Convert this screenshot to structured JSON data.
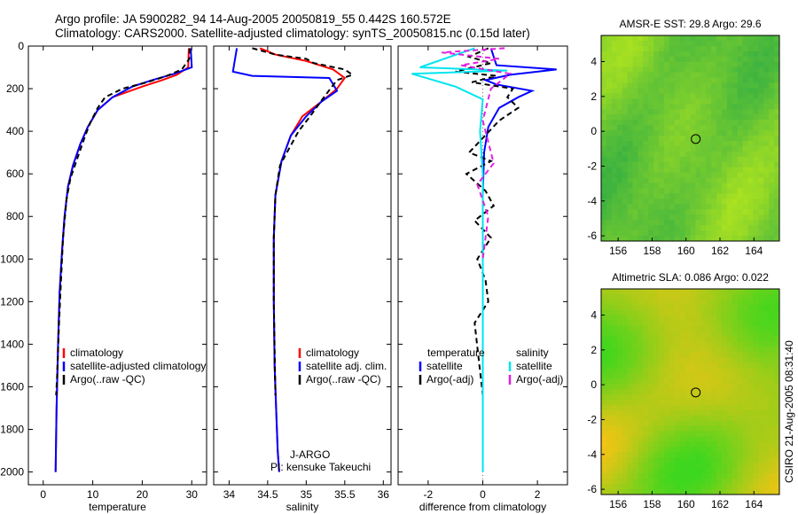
{
  "figure": {
    "title_line1": "Argo profile: JA 5900282_94 14-Aug-2005 20050819_55 0.442S 160.572E",
    "title_line2": "Climatology: CARS2000. Satellite-adjusted climatology: synTS_20050815.nc (0.15d later)",
    "credit": "CSIRO 21-Aug-2005 08:31:40",
    "program": "J-ARGO",
    "pi": "PI: kensuke Takeuchi",
    "colors": {
      "red": "#ff0000",
      "blue": "#0000ff",
      "black": "#000000",
      "cyan": "#00e5ee",
      "magenta": "#e020e0"
    }
  },
  "chart_data": [
    {
      "type": "line",
      "id": "temperature",
      "xlabel": "temperature",
      "xlim": [
        -3,
        33
      ],
      "ylim": [
        2060,
        0
      ],
      "xticks": [
        0,
        10,
        20,
        30
      ],
      "yticks": [
        0,
        200,
        400,
        600,
        800,
        1000,
        1200,
        1400,
        1600,
        1800,
        2000
      ],
      "legend": [
        "climatology",
        "satellite-adjusted climatology",
        "Argo(..raw -QC)"
      ],
      "series": [
        {
          "name": "climatology",
          "color": "red",
          "x": [
            29.4,
            29.3,
            27.0,
            24.0,
            20.0,
            14.0,
            11.0,
            9.0,
            7.5,
            6.0,
            5.0,
            4.3,
            3.8,
            3.3,
            3.0,
            2.7,
            2.5
          ],
          "y": [
            10,
            100,
            135,
            160,
            190,
            240,
            300,
            380,
            460,
            560,
            660,
            800,
            960,
            1160,
            1400,
            1700,
            2000
          ]
        },
        {
          "name": "satellite-adjusted climatology",
          "color": "blue",
          "x": [
            29.8,
            30.0,
            26.5,
            22.0,
            18.0,
            14.0,
            11.0,
            9.0,
            7.5,
            6.0,
            5.0,
            4.3,
            3.8,
            3.3,
            3.0,
            2.7,
            2.5
          ],
          "y": [
            10,
            100,
            130,
            160,
            190,
            240,
            300,
            380,
            460,
            560,
            660,
            800,
            960,
            1160,
            1400,
            1700,
            2000
          ]
        },
        {
          "name": "Argo(..raw -QC)",
          "color": "black",
          "dashed": true,
          "x": [
            29.6,
            29.5,
            28.0,
            25.0,
            21.0,
            16.0,
            12.5,
            11.0,
            9.5,
            8.5,
            7.0,
            5.5,
            4.7,
            4.0,
            3.6,
            3.2,
            2.8,
            2.6
          ],
          "y": [
            10,
            60,
            110,
            140,
            170,
            200,
            240,
            290,
            360,
            420,
            520,
            620,
            720,
            900,
            1100,
            1300,
            1550,
            1640
          ]
        }
      ]
    },
    {
      "type": "line",
      "id": "salinity",
      "xlabel": "salinity",
      "xlim": [
        33.8,
        36.1
      ],
      "ylim": [
        2060,
        0
      ],
      "xticks": [
        34,
        34.5,
        35,
        35.5,
        36
      ],
      "legend": [
        "climatology",
        "satellite adj. clim.",
        "Argo(..raw -QC)"
      ],
      "series": [
        {
          "name": "climatology",
          "color": "red",
          "x": [
            34.4,
            34.6,
            35.0,
            35.35,
            35.5,
            35.4,
            35.2,
            34.95,
            34.8,
            34.68,
            34.6,
            34.58,
            34.58,
            34.59,
            34.61,
            34.63,
            34.65
          ],
          "y": [
            10,
            40,
            70,
            110,
            150,
            200,
            260,
            330,
            420,
            540,
            700,
            900,
            1200,
            1500,
            1700,
            1900,
            2000
          ]
        },
        {
          "name": "satellite adj. clim.",
          "color": "blue",
          "x": [
            34.1,
            34.05,
            34.3,
            35.3,
            35.4,
            35.2,
            35.0,
            34.8,
            34.68,
            34.6,
            34.58,
            34.58,
            34.59,
            34.61,
            34.63,
            34.65
          ],
          "y": [
            10,
            120,
            140,
            150,
            210,
            260,
            330,
            420,
            540,
            700,
            900,
            1200,
            1500,
            1700,
            1900,
            2000
          ]
        },
        {
          "name": "Argo(..raw -QC)",
          "color": "black",
          "dashed": true,
          "x": [
            34.3,
            34.6,
            35.0,
            35.1,
            35.5,
            35.6,
            35.4,
            35.25,
            35.05,
            34.9,
            34.78,
            34.66,
            34.6,
            34.58,
            34.58,
            34.6
          ],
          "y": [
            10,
            40,
            60,
            80,
            110,
            135,
            160,
            230,
            330,
            400,
            480,
            560,
            700,
            900,
            1200,
            1640
          ]
        }
      ]
    },
    {
      "type": "line",
      "id": "difference",
      "xlabel": "difference from climatology",
      "xlim": [
        -3.1,
        3.1
      ],
      "ylim": [
        2060,
        0
      ],
      "xticks": [
        -2,
        0,
        2
      ],
      "legend_temperature_header": "temperature",
      "legend_salinity_header": "salinity",
      "legend": [
        "satellite",
        "Argo(-adj)",
        "satellite",
        "Argo(-adj)"
      ],
      "series": [
        {
          "name": "satellite",
          "group": "temperature",
          "color": "blue",
          "x": [
            0.3,
            0.5,
            2.7,
            1.0,
            0.1,
            0.5,
            1.8,
            1.3,
            0.6,
            0.2,
            0.05,
            0.0,
            0.0,
            0.0
          ],
          "y": [
            10,
            90,
            110,
            135,
            160,
            180,
            210,
            240,
            290,
            380,
            500,
            700,
            1200,
            1700
          ]
        },
        {
          "name": "Argo(-adj)",
          "group": "temperature",
          "color": "black",
          "dashed": true,
          "x": [
            0.2,
            -0.5,
            0.3,
            -1.0,
            0.5,
            -0.4,
            1.1,
            0.9,
            1.3,
            0.6,
            -0.5,
            0.3,
            -0.6,
            0.1,
            0.4,
            -0.3,
            0.3,
            -0.2,
            0.1,
            0.2,
            -0.3,
            0.0
          ],
          "y": [
            10,
            50,
            80,
            120,
            140,
            170,
            200,
            240,
            290,
            350,
            500,
            540,
            600,
            680,
            750,
            820,
            900,
            1000,
            1100,
            1200,
            1300,
            1640
          ]
        },
        {
          "name": "satellite",
          "group": "salinity",
          "color": "cyan",
          "x": [
            -0.3,
            -2.3,
            0.9,
            -2.6,
            -1.0,
            0.0,
            -0.1,
            0.0,
            0.0,
            0.0,
            0.0
          ],
          "y": [
            10,
            100,
            115,
            130,
            190,
            250,
            400,
            600,
            1000,
            1500,
            2000
          ]
        },
        {
          "name": "Argo(-adj)",
          "group": "salinity",
          "color": "magenta",
          "dashed": true,
          "x": [
            0.8,
            -1.5,
            0.6,
            -0.8,
            1.0,
            0.3,
            0.0,
            0.4,
            -0.2,
            0.2,
            0.0
          ],
          "y": [
            10,
            30,
            60,
            90,
            130,
            200,
            350,
            550,
            650,
            800,
            1000
          ]
        }
      ]
    },
    {
      "type": "heatmap",
      "id": "sst-map",
      "title": "AMSR-E SST: 29.8  Argo: 29.6",
      "xlim": [
        155,
        165.5
      ],
      "ylim": [
        -6.3,
        5.5
      ],
      "xticks": [
        156,
        158,
        160,
        162,
        164
      ],
      "yticks": [
        -6,
        -4,
        -2,
        0,
        2,
        4
      ],
      "marker": {
        "lon": 160.572,
        "lat": -0.442
      }
    },
    {
      "type": "heatmap",
      "id": "sla-map",
      "title": "Altimetric SLA: 0.086  Argo: 0.022",
      "xlim": [
        155,
        165.5
      ],
      "ylim": [
        -6.3,
        5.5
      ],
      "xticks": [
        156,
        158,
        160,
        162,
        164
      ],
      "yticks": [
        -6,
        -4,
        -2,
        0,
        2,
        4
      ],
      "marker": {
        "lon": 160.572,
        "lat": -0.442
      }
    }
  ]
}
